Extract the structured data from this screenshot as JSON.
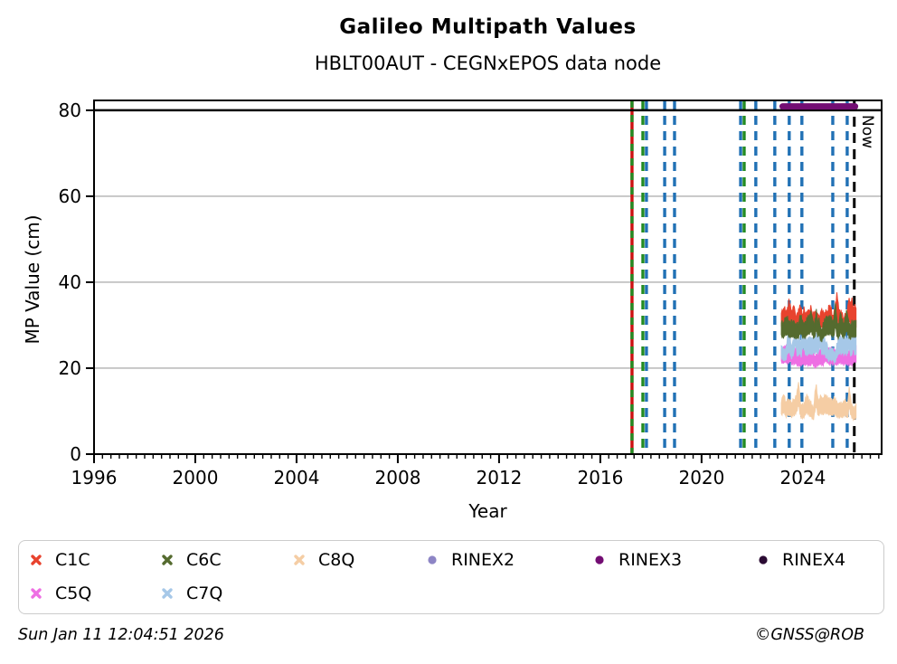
{
  "header": {
    "title": "Galileo Multipath Values",
    "subtitle": "HBLT00AUT - CEGNxEPOS data node"
  },
  "footer": {
    "timestamp": "Sun Jan 11 12:04:51 2026",
    "copyright": "©GNSS@ROB"
  },
  "chart_data": {
    "type": "scatter",
    "title": "Galileo Multipath Values",
    "subtitle": "HBLT00AUT - CEGNxEPOS data node",
    "xlabel": "Year",
    "ylabel": "MP Value (cm)",
    "xlim": [
      1996,
      2027.11
    ],
    "ylim": [
      0,
      82.3
    ],
    "x_major_ticks": [
      1996,
      2000,
      2004,
      2008,
      2012,
      2016,
      2020,
      2024
    ],
    "x_minor_step_years": 0.3333,
    "y_major_ticks": [
      0,
      20,
      40,
      60,
      80
    ],
    "grid": {
      "horizontal_at": [
        20,
        40,
        60
      ],
      "color": "#b0b0b0"
    },
    "hline": {
      "value": 80,
      "color": "#000000"
    },
    "now_line": {
      "x": 2026.03,
      "label": "Now",
      "color": "#000000",
      "style": "dashed"
    },
    "event_lines": [
      {
        "x": 2017.25,
        "style": "red-green",
        "color": "#cc1111",
        "color2": "#228b22"
      },
      {
        "x": 2017.68,
        "style": "dashed",
        "color": "#228b22"
      },
      {
        "x": 2017.82,
        "style": "dashed",
        "color": "#2171b5"
      },
      {
        "x": 2018.54,
        "style": "dashed",
        "color": "#2171b5"
      },
      {
        "x": 2018.93,
        "style": "dashed",
        "color": "#2171b5"
      },
      {
        "x": 2021.54,
        "style": "dashed",
        "color": "#2171b5"
      },
      {
        "x": 2021.68,
        "style": "dashed",
        "color": "#228b22"
      },
      {
        "x": 2022.14,
        "style": "dashed",
        "color": "#2171b5"
      },
      {
        "x": 2022.89,
        "style": "dashed",
        "color": "#2171b5"
      },
      {
        "x": 2023.46,
        "style": "dashed",
        "color": "#2171b5"
      },
      {
        "x": 2023.96,
        "style": "dashed",
        "color": "#2171b5"
      },
      {
        "x": 2025.18,
        "style": "dashed",
        "color": "#2171b5"
      },
      {
        "x": 2025.75,
        "style": "dashed",
        "color": "#2171b5"
      }
    ],
    "series": [
      {
        "name": "C1C",
        "color": "#e8432e",
        "marker": "x",
        "render": "band",
        "x_range": [
          2023.15,
          2026.1
        ],
        "center": 31.3,
        "half_width": 1.8,
        "noise": 1.1,
        "spike": 2.6,
        "seed": 11
      },
      {
        "name": "C6C",
        "color": "#556b2f",
        "marker": "x",
        "render": "band",
        "x_range": [
          2023.15,
          2026.1
        ],
        "center": 29.3,
        "half_width": 1.7,
        "noise": 1.1,
        "spike": 2.2,
        "seed": 21
      },
      {
        "name": "C8Q",
        "color": "#f5cda4",
        "marker": "x",
        "render": "band",
        "x_range": [
          2023.15,
          2026.1
        ],
        "center": 10.4,
        "half_width": 1.5,
        "noise": 0.9,
        "spike": 2.0,
        "seed": 31
      },
      {
        "name": "RINEX2",
        "color": "#8d85c5",
        "marker": "dot",
        "render": "none"
      },
      {
        "name": "RINEX3",
        "color": "#730d73",
        "marker": "dot",
        "render": "hline",
        "x_range": [
          2023.2,
          2026.06
        ],
        "value": 80.9,
        "thickness": 7
      },
      {
        "name": "RINEX4",
        "color": "#2b0b33",
        "marker": "dot",
        "render": "none"
      },
      {
        "name": "C5Q",
        "color": "#ee6fe3",
        "marker": "x",
        "render": "band",
        "x_range": [
          2023.15,
          2026.1
        ],
        "center": 22.6,
        "half_width": 1.5,
        "noise": 0.8,
        "spike": 0.8,
        "seed": 41
      },
      {
        "name": "C7Q",
        "color": "#a6c8e8",
        "marker": "x",
        "render": "band",
        "x_range": [
          2023.15,
          2026.1
        ],
        "center": 24.8,
        "half_width": 1.6,
        "noise": 1.2,
        "spike": 3.2,
        "seed": 51
      }
    ],
    "draw_order": [
      "C8Q",
      "C5Q",
      "C7Q",
      "C1C",
      "C6C",
      "RINEX3"
    ],
    "legend_position": "bottom",
    "legend_rows": [
      [
        "C1C",
        "C6C",
        "C8Q",
        "RINEX2",
        "RINEX3",
        "RINEX4"
      ],
      [
        "C5Q",
        "C7Q"
      ]
    ]
  }
}
